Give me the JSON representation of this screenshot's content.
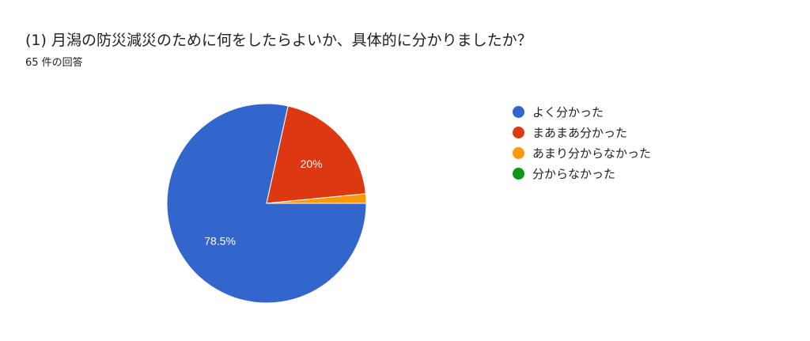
{
  "title": "(1) 月潟の防災減災のために何をしたらよいか、具体的に分かりましたか？",
  "subtitle": "65 件の回答",
  "chart_data": {
    "type": "pie",
    "categories": [
      "よく分かった",
      "まあまあ分かった",
      "あまり分からなかった",
      "分からなかった"
    ],
    "values": [
      51,
      13,
      1,
      0
    ],
    "labels": [
      "78.5%",
      "20%",
      "",
      ""
    ],
    "colors": [
      "#3366cc",
      "#dc3912",
      "#ff9900",
      "#109618"
    ],
    "legend": "right",
    "start_angle_deg": 90
  }
}
